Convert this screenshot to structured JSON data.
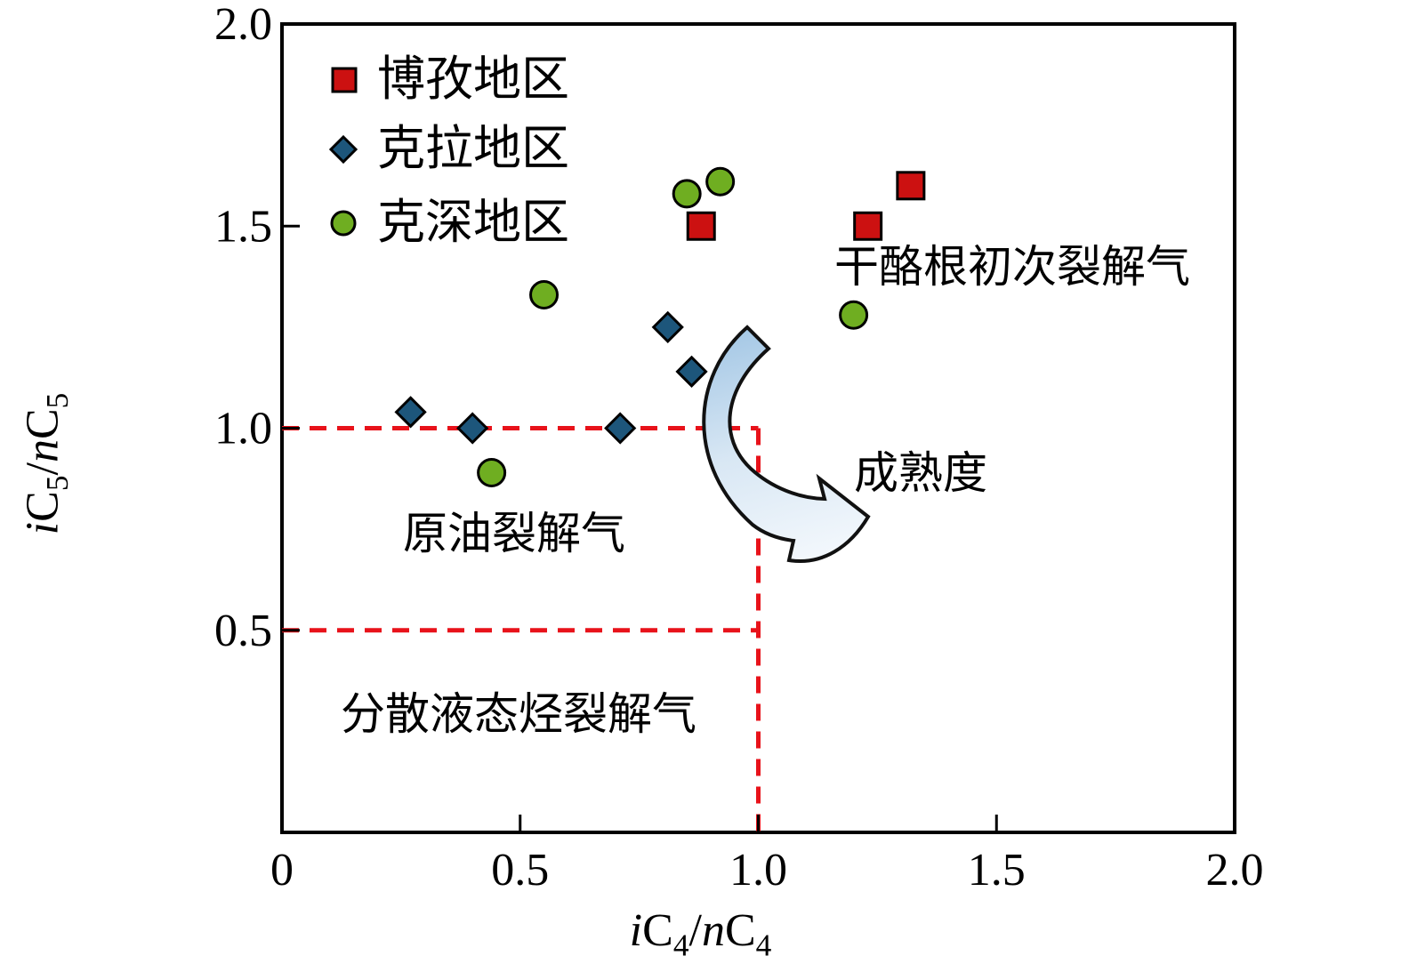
{
  "chart_data": {
    "type": "scatter",
    "title": "",
    "xlabel": "iC4/nC4",
    "ylabel": "iC5/nC5",
    "xlim": [
      0,
      2.0
    ],
    "ylim": [
      0,
      2.0
    ],
    "grid": false,
    "legend_position": "top-left-inside",
    "x_ticks": [
      0,
      0.5,
      1.0,
      1.5,
      2.0
    ],
    "x_tick_labels": [
      "0",
      "0.5",
      "1.0",
      "1.5",
      "2.0"
    ],
    "y_ticks": [
      0.5,
      1.0,
      1.5,
      2.0
    ],
    "y_tick_labels": [
      "0.5",
      "1.0",
      "1.5",
      "2.0"
    ],
    "series": [
      {
        "name": "博孜地区",
        "marker": "square",
        "color": "#cc1111",
        "points": [
          [
            0.88,
            1.5
          ],
          [
            1.23,
            1.5
          ],
          [
            1.32,
            1.6
          ]
        ]
      },
      {
        "name": "克拉地区",
        "marker": "diamond",
        "color": "#1d567b",
        "points": [
          [
            0.27,
            1.04
          ],
          [
            0.4,
            1.0
          ],
          [
            0.71,
            1.0
          ],
          [
            0.81,
            1.25
          ],
          [
            0.86,
            1.14
          ]
        ]
      },
      {
        "name": "克深地区",
        "marker": "circle",
        "color": "#6fae21",
        "points": [
          [
            0.44,
            0.89
          ],
          [
            0.55,
            1.33
          ],
          [
            0.85,
            1.58
          ],
          [
            0.92,
            1.61
          ],
          [
            1.2,
            1.28
          ]
        ]
      }
    ],
    "reference_lines": [
      {
        "orient": "horizontal",
        "value": 1.0,
        "span": [
          0,
          1.0
        ],
        "style": "dashed",
        "color": "#e8121a"
      },
      {
        "orient": "horizontal",
        "value": 0.5,
        "span": [
          0,
          1.0
        ],
        "style": "dashed",
        "color": "#e8121a"
      },
      {
        "orient": "vertical",
        "value": 1.0,
        "span": [
          0,
          1.0
        ],
        "style": "dashed",
        "color": "#e8121a"
      }
    ],
    "annotations": [
      {
        "text": "干酪根初次裂解气",
        "x": 1.16,
        "y": 1.4
      },
      {
        "text": "成熟度",
        "x": 1.2,
        "y": 0.89
      },
      {
        "text": "原油裂解气",
        "x": 0.25,
        "y": 0.74
      },
      {
        "text": "分散液态烃裂解气",
        "x": 0.12,
        "y": 0.29
      }
    ],
    "maturity_arrow": {
      "meaning": "increasing maturity",
      "from": [
        1.0,
        1.25
      ],
      "to": [
        1.23,
        0.78
      ],
      "shape": "curved-wide-arrow",
      "fill_gradient": [
        "#a7c9e6",
        "#f2f7fc"
      ],
      "outline": "#111111"
    }
  },
  "axes": {
    "x_title_parts": [
      "i",
      "C",
      "4",
      "/",
      "n",
      "C",
      "4"
    ],
    "y_title_parts": [
      "i",
      "C",
      "5",
      "/",
      "n",
      "C",
      "5"
    ]
  },
  "frame_color": "#000000"
}
